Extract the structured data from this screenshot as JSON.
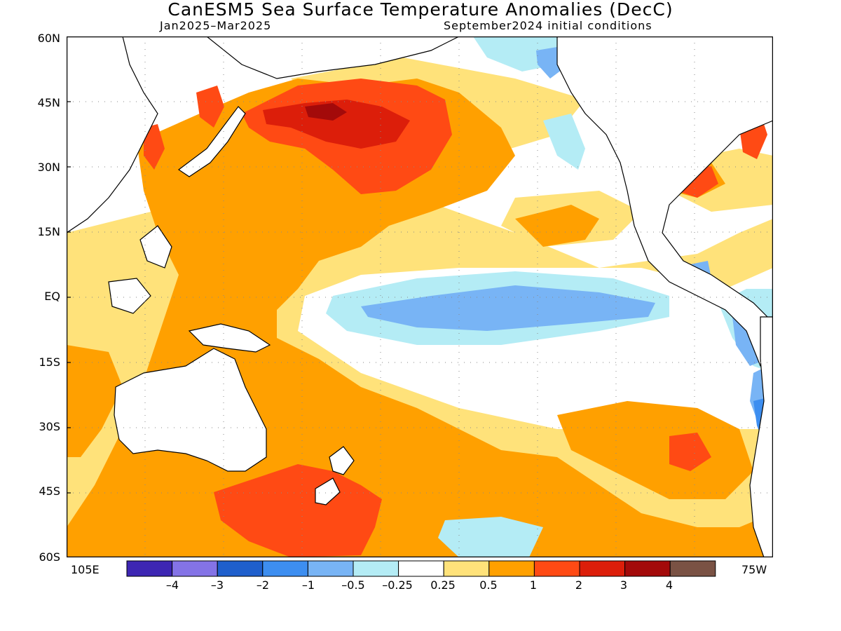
{
  "title": "CanESM5 Sea Surface Temperature Anomalies (DecC)",
  "subtitle_left": "Jan2025–Mar2025",
  "subtitle_right": "September2024 initial conditions",
  "lat_labels": [
    "60N",
    "45N",
    "30N",
    "15N",
    "EQ",
    "15S",
    "30S",
    "45S",
    "60S"
  ],
  "lon_labels": {
    "left": "105E",
    "right": "75W"
  },
  "colorbar": {
    "colors": [
      "#3d26b3",
      "#8473e6",
      "#1f5fcc",
      "#3d8ef0",
      "#78b4f5",
      "#b4ecf5",
      "#ffffff",
      "#ffe27a",
      "#ffa000",
      "#ff4a14",
      "#dc1e0a",
      "#a30a0a",
      "#7a5244"
    ],
    "labels": [
      "–4",
      "–3",
      "–2",
      "–1",
      "–0.5",
      "–0.25",
      "0.25",
      "0.5",
      "1",
      "2",
      "3",
      "4"
    ]
  }
}
